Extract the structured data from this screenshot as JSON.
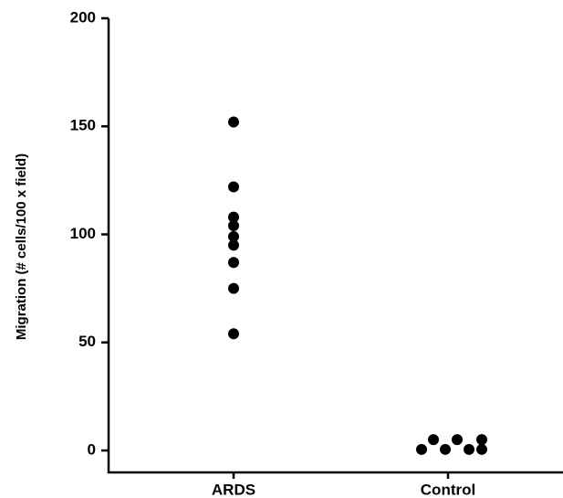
{
  "chart_data": {
    "type": "scatter",
    "title": "",
    "xlabel": "",
    "ylabel": "Migration (# cells/100 x field)",
    "categories": [
      "ARDS",
      "Control"
    ],
    "ylim": [
      0,
      200
    ],
    "yticks": [
      0,
      50,
      100,
      150,
      200
    ],
    "grid": false,
    "legend": "none",
    "marker_color": "#000000",
    "series": [
      {
        "category": "ARDS",
        "points": [
          {
            "x": "ARDS",
            "y": 152
          },
          {
            "x": "ARDS",
            "y": 122
          },
          {
            "x": "ARDS",
            "y": 108
          },
          {
            "x": "ARDS",
            "y": 104
          },
          {
            "x": "ARDS",
            "y": 99
          },
          {
            "x": "ARDS",
            "y": 95
          },
          {
            "x": "ARDS",
            "y": 87
          },
          {
            "x": "ARDS",
            "y": 75
          },
          {
            "x": "ARDS",
            "y": 54
          }
        ]
      },
      {
        "category": "Control",
        "points": [
          {
            "x": "Control",
            "y": 0.5
          },
          {
            "x": "Control",
            "y": 5
          },
          {
            "x": "Control",
            "y": 0.5
          },
          {
            "x": "Control",
            "y": 5
          },
          {
            "x": "Control",
            "y": 0.5
          },
          {
            "x": "Control",
            "y": 5
          },
          {
            "x": "Control",
            "y": 0.5
          }
        ]
      }
    ]
  }
}
